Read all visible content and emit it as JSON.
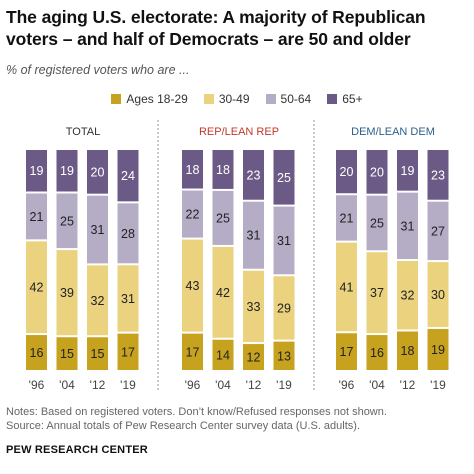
{
  "title": "The aging U.S. electorate: A majority of Republican voters – and half of Democrats – are 50 and older",
  "subtitle": "% of registered voters who are ...",
  "legend": [
    {
      "name": "Ages 18-29",
      "color": "#c7a21f"
    },
    {
      "name": "30-49",
      "color": "#ead27f"
    },
    {
      "name": "50-64",
      "color": "#b5adc6"
    },
    {
      "name": "65+",
      "color": "#6b5a86"
    }
  ],
  "notes": [
    "Notes: Based on registered voters. Don’t know/Refused responses not shown.",
    "Source: Annual totals of Pew Research Center survey data (U.S. adults)."
  ],
  "source_org": "PEW RESEARCH CENTER",
  "chart_data": [
    {
      "type": "bar",
      "stacked": true,
      "title": "TOTAL",
      "title_color": "#333333",
      "categories": [
        "'96",
        "'04",
        "'12",
        "'19"
      ],
      "series": [
        {
          "name": "Ages 18-29",
          "values": [
            16,
            15,
            15,
            17
          ]
        },
        {
          "name": "30-49",
          "values": [
            42,
            39,
            32,
            31
          ]
        },
        {
          "name": "50-64",
          "values": [
            21,
            25,
            31,
            28
          ]
        },
        {
          "name": "65+",
          "values": [
            19,
            19,
            20,
            24
          ]
        }
      ]
    },
    {
      "type": "bar",
      "stacked": true,
      "title": "REP/LEAN REP",
      "title_color": "#c0392b",
      "categories": [
        "'96",
        "'04",
        "'12",
        "'19"
      ],
      "series": [
        {
          "name": "Ages 18-29",
          "values": [
            17,
            14,
            12,
            13
          ]
        },
        {
          "name": "30-49",
          "values": [
            43,
            42,
            33,
            29
          ]
        },
        {
          "name": "50-64",
          "values": [
            22,
            25,
            31,
            31
          ]
        },
        {
          "name": "65+",
          "values": [
            18,
            18,
            23,
            25
          ]
        }
      ]
    },
    {
      "type": "bar",
      "stacked": true,
      "title": "DEM/LEAN DEM",
      "title_color": "#2b5f8a",
      "categories": [
        "'96",
        "'04",
        "'12",
        "'19"
      ],
      "series": [
        {
          "name": "Ages 18-29",
          "values": [
            17,
            16,
            18,
            19
          ]
        },
        {
          "name": "30-49",
          "values": [
            41,
            37,
            32,
            30
          ]
        },
        {
          "name": "50-64",
          "values": [
            21,
            25,
            31,
            27
          ]
        },
        {
          "name": "65+",
          "values": [
            20,
            20,
            19,
            23
          ]
        }
      ]
    }
  ]
}
